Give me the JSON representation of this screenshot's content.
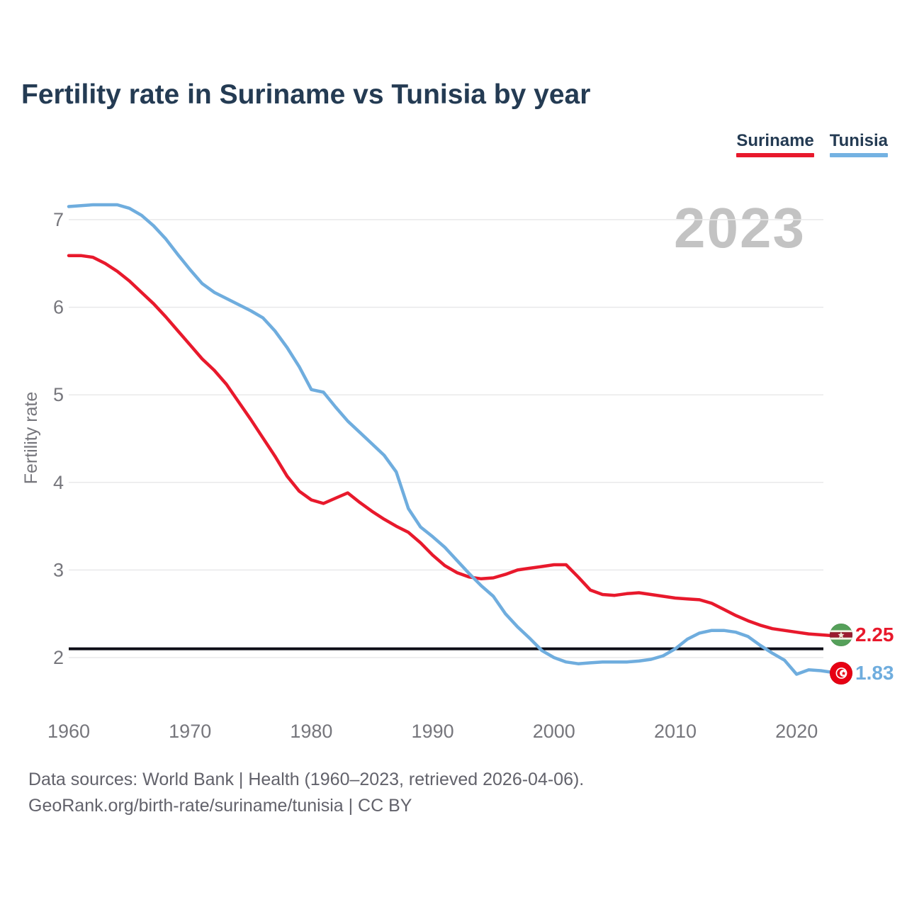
{
  "header": {
    "title": "Fertility rate in Suriname vs Tunisia by year"
  },
  "legend": {
    "items": [
      {
        "label": "Suriname",
        "color": "#e8192c"
      },
      {
        "label": "Tunisia",
        "color": "#74b2e2"
      }
    ]
  },
  "watermark": "2023",
  "chart_data": {
    "type": "line",
    "title": "Fertility rate in Suriname vs Tunisia by year",
    "xlabel": "",
    "ylabel": "Fertility rate",
    "x_ticks": [
      1960,
      1970,
      1980,
      1990,
      2000,
      2010,
      2020
    ],
    "y_ticks": [
      7,
      6,
      5,
      4,
      3,
      2
    ],
    "xlim": [
      1960,
      2023
    ],
    "ylim": [
      1.6,
      7.4
    ],
    "grid": "horizontal",
    "legend_position": "top-right",
    "years": [
      1960,
      1961,
      1962,
      1963,
      1964,
      1965,
      1966,
      1967,
      1968,
      1969,
      1970,
      1971,
      1972,
      1973,
      1974,
      1975,
      1976,
      1977,
      1978,
      1979,
      1980,
      1981,
      1982,
      1983,
      1984,
      1985,
      1986,
      1987,
      1988,
      1989,
      1990,
      1991,
      1992,
      1993,
      1994,
      1995,
      1996,
      1997,
      1998,
      1999,
      2000,
      2001,
      2002,
      2003,
      2004,
      2005,
      2006,
      2007,
      2008,
      2009,
      2010,
      2011,
      2012,
      2013,
      2014,
      2015,
      2016,
      2017,
      2018,
      2019,
      2020,
      2021,
      2022,
      2023
    ],
    "series": [
      {
        "name": "Suriname",
        "color": "#e8192c",
        "end_label": "2.25",
        "end_value": 2.25,
        "values": [
          6.59,
          6.59,
          6.57,
          6.5,
          6.41,
          6.3,
          6.17,
          6.04,
          5.89,
          5.73,
          5.57,
          5.41,
          5.28,
          5.12,
          4.92,
          4.72,
          4.51,
          4.3,
          4.07,
          3.9,
          3.8,
          3.76,
          3.82,
          3.88,
          3.77,
          3.67,
          3.58,
          3.5,
          3.43,
          3.31,
          3.17,
          3.05,
          2.97,
          2.92,
          2.9,
          2.91,
          2.95,
          3.0,
          3.02,
          3.04,
          3.06,
          3.06,
          2.92,
          2.77,
          2.72,
          2.71,
          2.73,
          2.74,
          2.72,
          2.7,
          2.68,
          2.67,
          2.66,
          2.62,
          2.55,
          2.48,
          2.42,
          2.37,
          2.33,
          2.31,
          2.29,
          2.27,
          2.26,
          2.25
        ]
      },
      {
        "name": "Tunisia",
        "color": "#6fadde",
        "end_label": "1.83",
        "end_value": 1.83,
        "values": [
          7.15,
          7.16,
          7.17,
          7.17,
          7.17,
          7.13,
          7.05,
          6.93,
          6.78,
          6.6,
          6.43,
          6.27,
          6.17,
          6.1,
          6.03,
          5.96,
          5.88,
          5.73,
          5.54,
          5.32,
          5.06,
          5.03,
          4.86,
          4.7,
          4.57,
          4.44,
          4.31,
          4.12,
          3.7,
          3.49,
          3.38,
          3.26,
          3.11,
          2.96,
          2.82,
          2.7,
          2.5,
          2.35,
          2.22,
          2.08,
          2.0,
          1.95,
          1.93,
          1.94,
          1.95,
          1.95,
          1.95,
          1.96,
          1.98,
          2.02,
          2.1,
          2.21,
          2.28,
          2.31,
          2.31,
          2.29,
          2.24,
          2.14,
          2.05,
          1.97,
          1.81,
          1.86,
          1.85,
          1.83
        ]
      }
    ],
    "reference_line": {
      "value": 2.1,
      "color": "#0d0d17"
    },
    "annotations": {
      "watermark_year": "2023"
    }
  },
  "colors": {
    "grid": "#e9e9ea",
    "axis_text": "#76767c",
    "title_text": "#243b53",
    "watermark": "#c3c3c3",
    "footer_text": "#62626b"
  },
  "footer": {
    "line1": "Data sources: World Bank | Health (1960–2023, retrieved 2026-04-06).",
    "line2": "GeoRank.org/birth-rate/suriname/tunisia | CC BY"
  }
}
